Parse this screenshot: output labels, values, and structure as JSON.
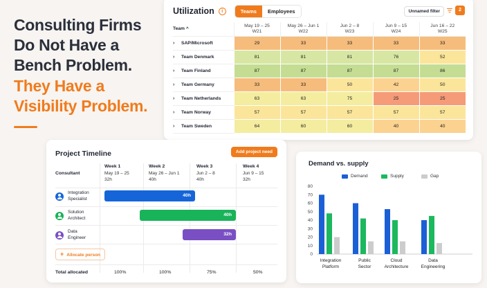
{
  "headline": {
    "line1": "Consulting Firms",
    "line2": "Do Not Have a",
    "line3": "Bench Problem.",
    "line4": "They Have a",
    "line5": "Visibility Problem."
  },
  "utilization": {
    "title": "Utilization",
    "tabs": [
      "Teams",
      "Employees"
    ],
    "active_tab": "Teams",
    "filter_label": "Unnamed filter",
    "filter_count": "2",
    "team_header": "Team ^",
    "weeks": [
      {
        "range": "May 19 – 25",
        "code": "W21"
      },
      {
        "range": "May 26 – Jun 1",
        "code": "W22"
      },
      {
        "range": "Jun 2 – 8",
        "code": "W23"
      },
      {
        "range": "Jun 9 – 15",
        "code": "W24"
      },
      {
        "range": "Jun 16 – 22",
        "code": "W25"
      }
    ],
    "rows": [
      {
        "team": "SAP/Microsoft",
        "values": [
          29,
          33,
          33,
          33,
          33
        ]
      },
      {
        "team": "Team Denmark",
        "values": [
          81,
          81,
          81,
          76,
          52
        ]
      },
      {
        "team": "Team Finland",
        "values": [
          87,
          87,
          87,
          87,
          86
        ]
      },
      {
        "team": "Team Germany",
        "values": [
          33,
          33,
          50,
          42,
          50
        ]
      },
      {
        "team": "Team Netherlands",
        "values": [
          63,
          63,
          75,
          25,
          25
        ]
      },
      {
        "team": "Team Norway",
        "values": [
          57,
          57,
          57,
          57,
          57
        ]
      },
      {
        "team": "Team Sweden",
        "values": [
          64,
          60,
          60,
          40,
          40
        ]
      }
    ],
    "colors": {
      "very_low": "#f6bc7c",
      "low": "#fbd28f",
      "mid": "#fbe59a",
      "midhigh": "#f4ec9f",
      "high": "#d7e7a3",
      "very_high": "#c5dd93",
      "critical": "#f59b78"
    }
  },
  "timeline": {
    "title": "Project Timeline",
    "add_button": "Add project need",
    "consultant_header": "Consultant",
    "weeks": [
      {
        "label": "Week 1",
        "range": "May 19 – 25",
        "hours": "32h"
      },
      {
        "label": "Week 2",
        "range": "May 26 – Jun 1",
        "hours": "40h"
      },
      {
        "label": "Week 3",
        "range": "Jun 2 – 8",
        "hours": "40h"
      },
      {
        "label": "Week 4",
        "range": "Jun 9 – 15",
        "hours": "32h"
      }
    ],
    "consultants": [
      {
        "name_line1": "Integration",
        "name_line2": "Specialist",
        "bar": "40h",
        "color": "#1565d8"
      },
      {
        "name_line1": "Solution",
        "name_line2": "Architect",
        "bar": "40h",
        "color": "#19b35a"
      },
      {
        "name_line1": "Data",
        "name_line2": "Engineer",
        "bar": "32h",
        "color": "#7a4fc4"
      }
    ],
    "allocate_label": "Allocate person",
    "total_label": "Total allocated",
    "totals": [
      "100%",
      "100%",
      "75%",
      "50%"
    ]
  },
  "chart_data": {
    "type": "bar",
    "title": "Demand vs. supply",
    "categories": [
      "Integration\nPlatform",
      "Public\nSector",
      "Cloud\nArchitecture",
      "Data\nEngineering"
    ],
    "category_lines": [
      [
        "Integration",
        "Platform"
      ],
      [
        "Public",
        "Sector"
      ],
      [
        "Cloud",
        "Architecture"
      ],
      [
        "Data",
        "Engineering"
      ]
    ],
    "series": [
      {
        "name": "Demand",
        "values": [
          70,
          60,
          53,
          40
        ],
        "color": "#1b5fd6"
      },
      {
        "name": "Supply",
        "values": [
          48,
          42,
          40,
          45
        ],
        "color": "#1cb85e"
      },
      {
        "name": "Gap",
        "values": [
          20,
          15,
          15,
          13
        ],
        "color": "#cccccc"
      }
    ],
    "ylim": [
      0,
      80
    ],
    "yticks": [
      0,
      10,
      20,
      30,
      40,
      50,
      60,
      70,
      80
    ],
    "legend": "top"
  }
}
